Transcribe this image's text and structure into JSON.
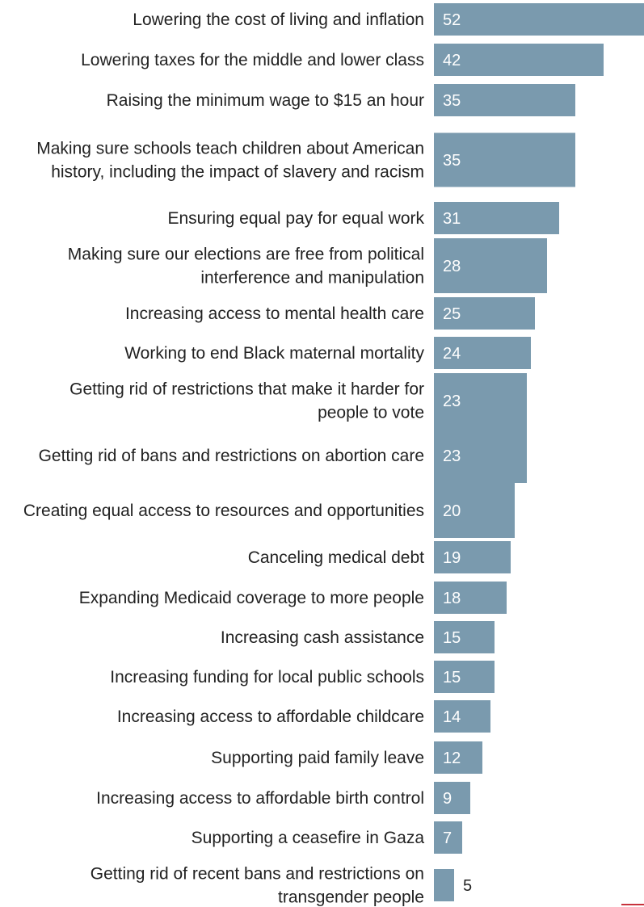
{
  "chart_data": {
    "type": "bar",
    "orientation": "horizontal",
    "categories": [
      "Lowering the cost of living and inflation",
      "Lowering taxes for the middle and lower class",
      "Raising the minimum wage to $15 an hour",
      "Making sure schools teach children about American history, including the impact of slavery and racism",
      "Ensuring equal pay for equal work",
      "Making sure our elections are free from political interference and manipulation",
      "Increasing access to mental health care",
      "Working to end Black maternal mortality",
      "Getting rid of restrictions that make it harder for people to vote",
      "Getting rid of bans and restrictions on abortion care",
      "Creating equal access to resources and opportunities",
      "Canceling medical debt",
      "Expanding Medicaid coverage to more people",
      "Increasing cash assistance",
      "Increasing funding for local public schools",
      "Increasing access to affordable childcare",
      "Supporting paid family leave",
      "Increasing access to affordable birth control",
      "Supporting a ceasefire in Gaza",
      "Getting rid of recent bans and restrictions on transgender people"
    ],
    "values": [
      52,
      42,
      35,
      35,
      31,
      28,
      25,
      24,
      23,
      23,
      20,
      19,
      18,
      15,
      15,
      14,
      12,
      9,
      7,
      5
    ],
    "title": "",
    "xlabel": "",
    "ylabel": "",
    "xlim": [
      0,
      52
    ],
    "grid": false,
    "legend": "none",
    "data_labels": true,
    "bar_color": "#7a9aae",
    "label_color": "#ffffff",
    "outside_label_color": "#222222"
  }
}
